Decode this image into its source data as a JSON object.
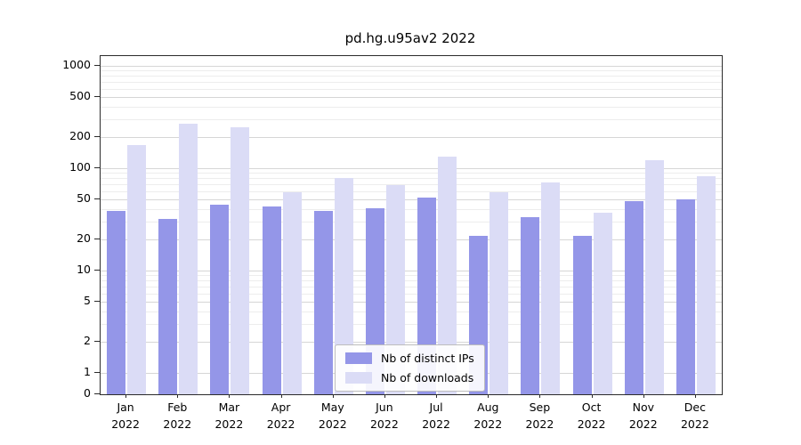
{
  "chart_data": {
    "type": "bar",
    "title": "pd.hg.u95av2 2022",
    "x_tick_months": [
      "Jan",
      "Feb",
      "Mar",
      "Apr",
      "May",
      "Jun",
      "Jul",
      "Aug",
      "Sep",
      "Oct",
      "Nov",
      "Dec"
    ],
    "x_tick_year": "2022",
    "y_scale": "log",
    "y_ticks": [
      0,
      1,
      2,
      5,
      10,
      20,
      50,
      100,
      200,
      500,
      1000
    ],
    "ylim": [
      0,
      1000
    ],
    "grid": true,
    "legend_position": "bottom-center",
    "series": [
      {
        "name": "Nb of distinct IPs",
        "color": "#9496e8",
        "values": [
          38,
          32,
          44,
          42,
          38,
          41,
          52,
          22,
          33,
          22,
          48,
          50
        ]
      },
      {
        "name": "Nb of downloads",
        "color": "#dbdcf6",
        "values": [
          170,
          270,
          250,
          58,
          80,
          68,
          130,
          58,
          72,
          37,
          120,
          83
        ]
      }
    ]
  }
}
